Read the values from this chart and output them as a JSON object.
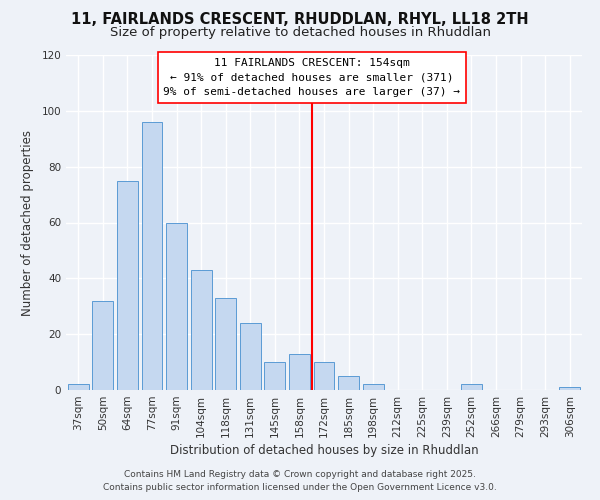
{
  "title": "11, FAIRLANDS CRESCENT, RHUDDLAN, RHYL, LL18 2TH",
  "subtitle": "Size of property relative to detached houses in Rhuddlan",
  "xlabel": "Distribution of detached houses by size in Rhuddlan",
  "ylabel": "Number of detached properties",
  "categories": [
    "37sqm",
    "50sqm",
    "64sqm",
    "77sqm",
    "91sqm",
    "104sqm",
    "118sqm",
    "131sqm",
    "145sqm",
    "158sqm",
    "172sqm",
    "185sqm",
    "198sqm",
    "212sqm",
    "225sqm",
    "239sqm",
    "252sqm",
    "266sqm",
    "279sqm",
    "293sqm",
    "306sqm"
  ],
  "values": [
    2,
    32,
    75,
    96,
    60,
    43,
    33,
    24,
    10,
    13,
    10,
    5,
    2,
    0,
    0,
    0,
    2,
    0,
    0,
    0,
    1
  ],
  "bar_color": "#c5d8f0",
  "bar_edge_color": "#5b9bd5",
  "reference_line_x": 9.5,
  "reference_line_label": "11 FAIRLANDS CRESCENT: 154sqm",
  "annotation_line1": "← 91% of detached houses are smaller (371)",
  "annotation_line2": "9% of semi-detached houses are larger (37) →",
  "ylim": [
    0,
    120
  ],
  "yticks": [
    0,
    20,
    40,
    60,
    80,
    100,
    120
  ],
  "footnote1": "Contains HM Land Registry data © Crown copyright and database right 2025.",
  "footnote2": "Contains public sector information licensed under the Open Government Licence v3.0.",
  "background_color": "#eef2f8",
  "grid_color": "#ffffff",
  "title_fontsize": 10.5,
  "subtitle_fontsize": 9.5,
  "label_fontsize": 8.5,
  "tick_fontsize": 7.5,
  "annotation_fontsize": 8,
  "footnote_fontsize": 6.5
}
